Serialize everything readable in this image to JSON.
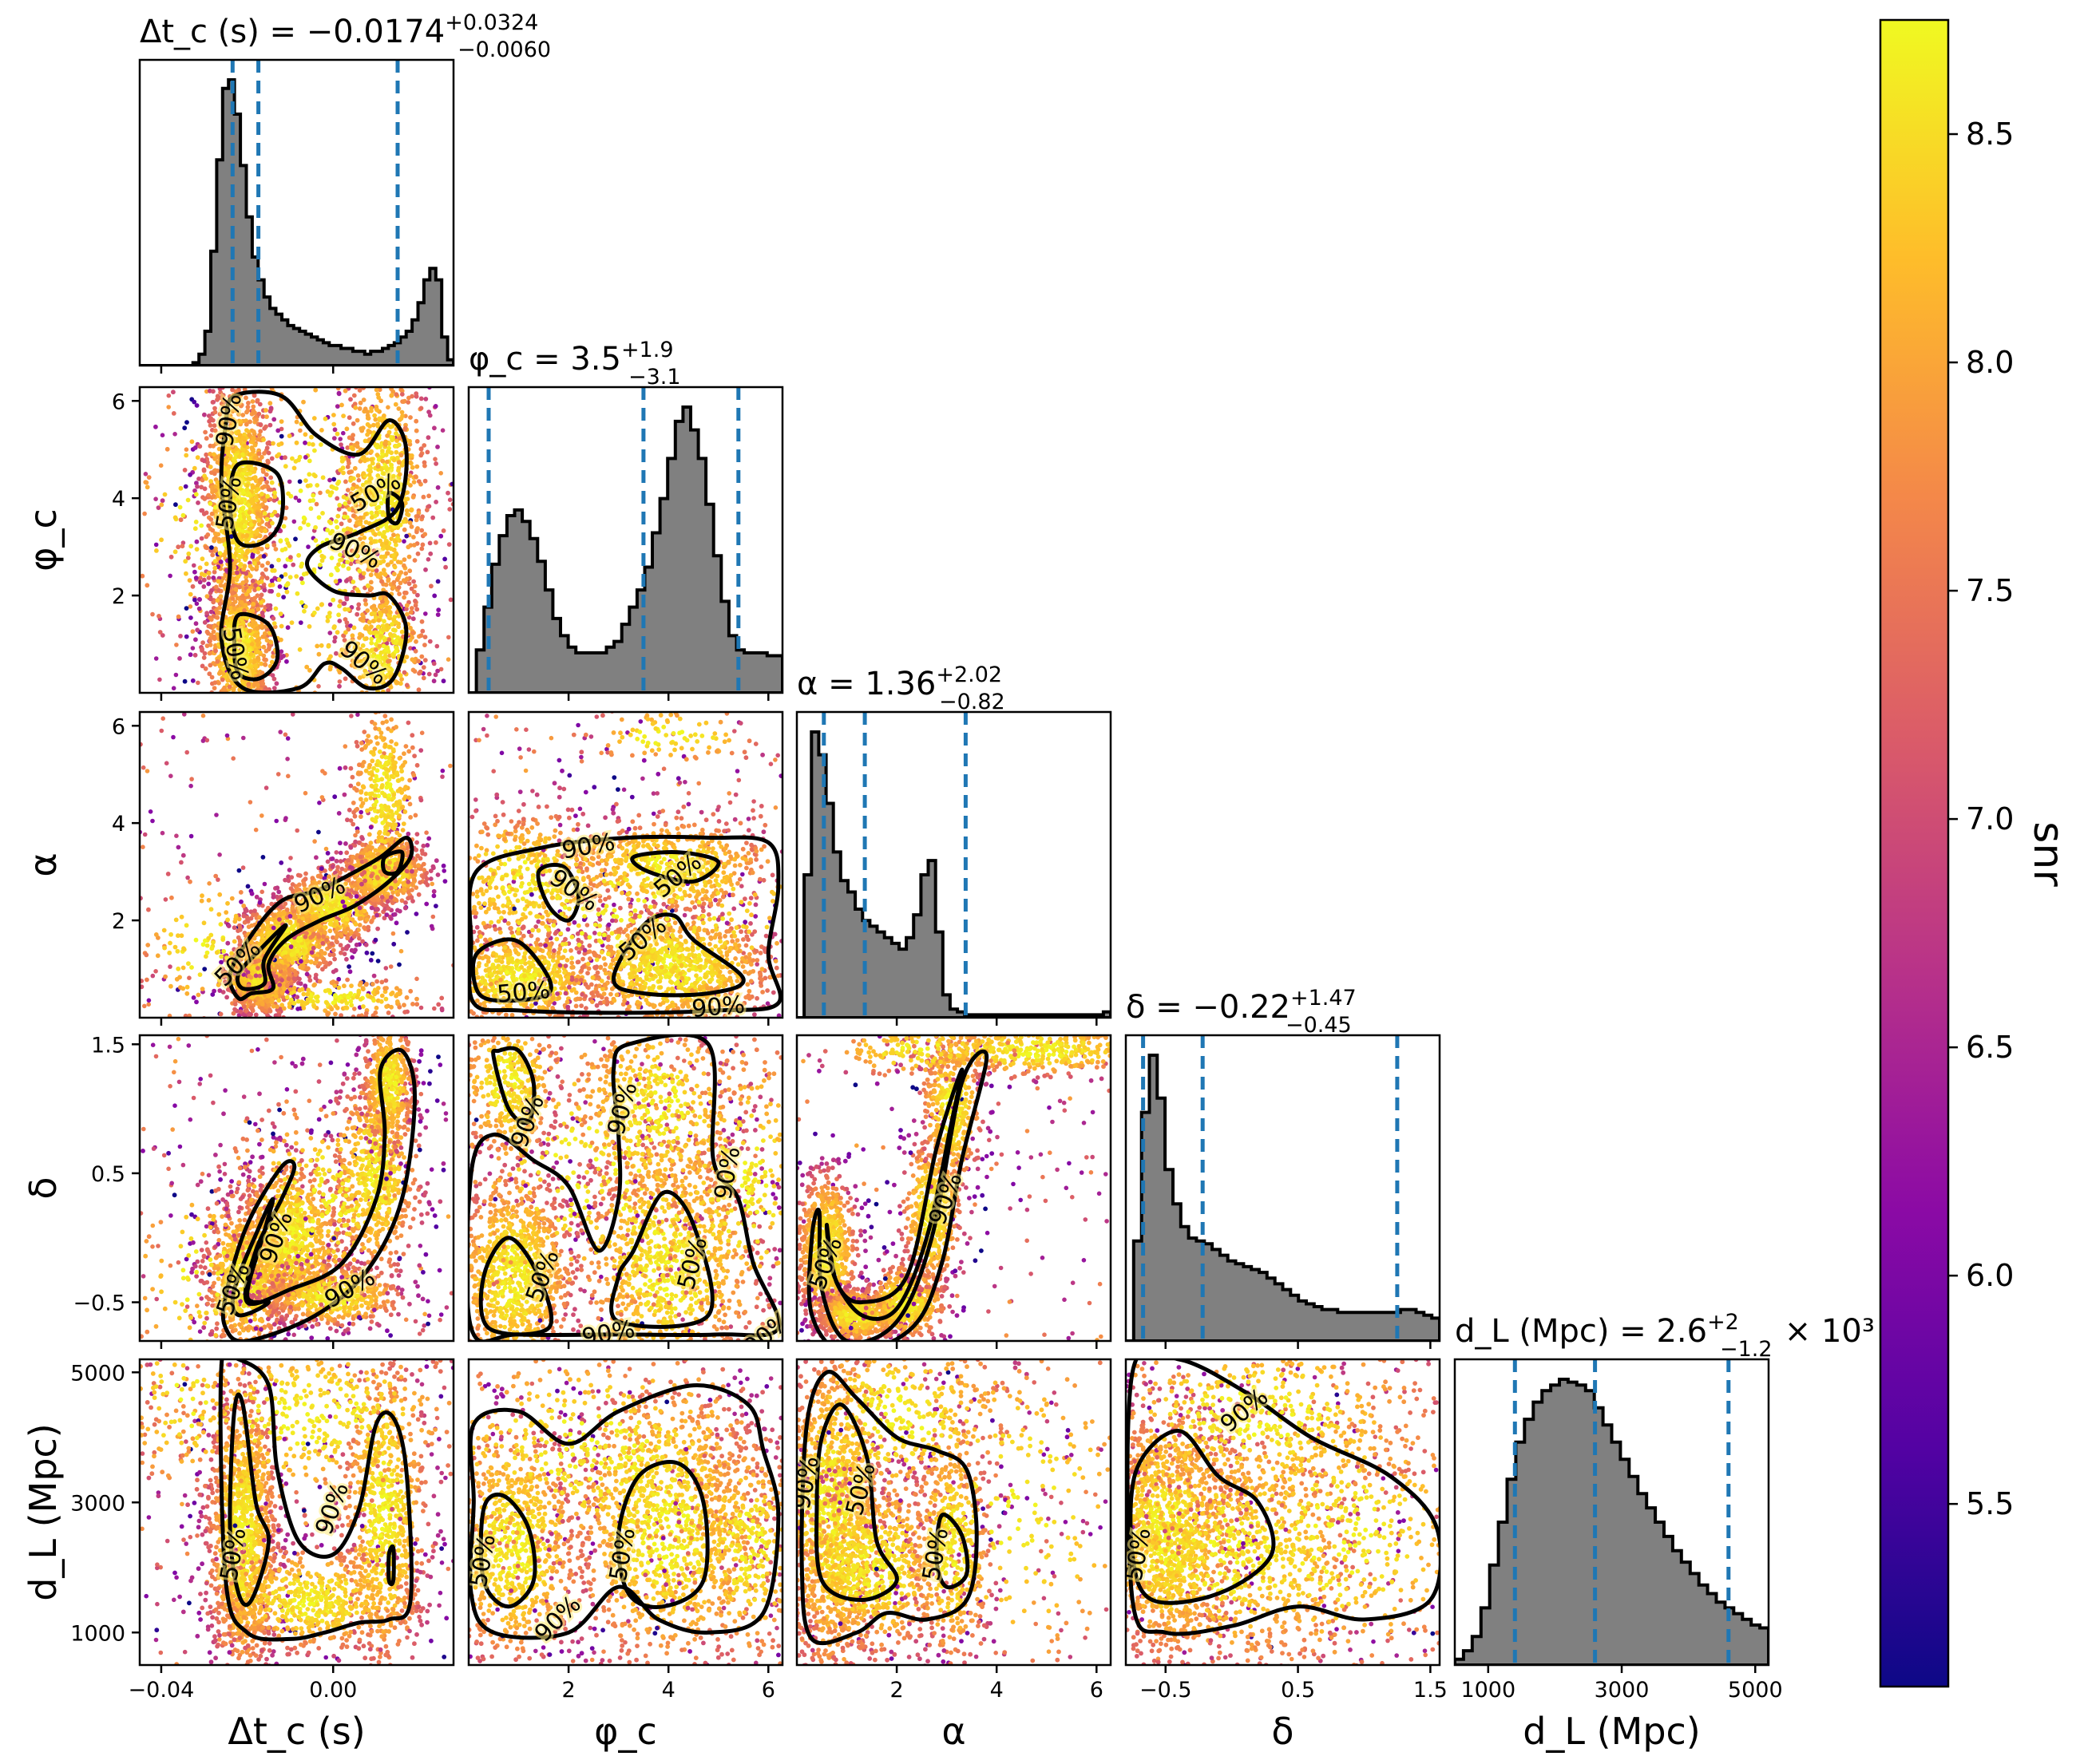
{
  "chart_data": {
    "type": "scatter",
    "subtype": "corner plot (posterior samples coloured by snr, 1-D histograms on diagonal, 50% / 90% credible contours)",
    "parameters": [
      {
        "key": "dtc",
        "label": "Δt_c (s)",
        "range": [
          -0.045,
          0.028
        ],
        "ticks": [
          {
            "v": -0.04,
            "t": "−0.04"
          },
          {
            "v": 0.0,
            "t": "0.00"
          }
        ],
        "title": {
          "prefix": "Δt_c (s) = −0.0174",
          "up": "+0.0324",
          "down": "−0.0060",
          "suffix": ""
        },
        "median": -0.0174,
        "q": [
          -0.0234,
          -0.0174,
          0.015
        ]
      },
      {
        "key": "phic",
        "label": "φ_c",
        "range": [
          0,
          6.283
        ],
        "ticks": [
          {
            "v": 2,
            "t": "2"
          },
          {
            "v": 4,
            "t": "4"
          },
          {
            "v": 6,
            "t": "6"
          }
        ],
        "title": {
          "prefix": "φ_c = 3.5",
          "up": "+1.9",
          "down": "−3.1",
          "suffix": ""
        },
        "median": 3.5,
        "q": [
          0.4,
          3.5,
          5.4
        ]
      },
      {
        "key": "alpha",
        "label": "α",
        "range": [
          0,
          6.283
        ],
        "ticks": [
          {
            "v": 2,
            "t": "2"
          },
          {
            "v": 4,
            "t": "4"
          },
          {
            "v": 6,
            "t": "6"
          }
        ],
        "title": {
          "prefix": "α = 1.36",
          "up": "+2.02",
          "down": "−0.82",
          "suffix": ""
        },
        "median": 1.36,
        "q": [
          0.54,
          1.36,
          3.38
        ]
      },
      {
        "key": "delta",
        "label": "δ",
        "range": [
          -0.8,
          1.57
        ],
        "ticks": [
          {
            "v": -0.5,
            "t": "−0.5"
          },
          {
            "v": 0.5,
            "t": "0.5"
          },
          {
            "v": 1.5,
            "t": "1.5"
          }
        ],
        "title": {
          "prefix": "δ = −0.22",
          "up": "+1.47",
          "down": "−0.45",
          "suffix": ""
        },
        "median": -0.22,
        "q": [
          -0.67,
          -0.22,
          1.25
        ]
      },
      {
        "key": "dl",
        "label": "d_L (Mpc)",
        "range": [
          500,
          5200
        ],
        "ticks": [
          {
            "v": 1000,
            "t": "1000"
          },
          {
            "v": 3000,
            "t": "3000"
          },
          {
            "v": 5000,
            "t": "5000"
          }
        ],
        "title": {
          "prefix": "d_L (Mpc) = 2.6",
          "up": "+2",
          "down": "−1.2",
          "suffix": " × 10³"
        },
        "median": 2600,
        "q": [
          1400,
          2600,
          4600
        ]
      }
    ],
    "histograms": {
      "dtc": [
        0,
        0,
        0,
        0,
        0,
        0,
        0,
        0,
        0,
        0.01,
        0.04,
        0.12,
        0.4,
        0.72,
        0.97,
        1.0,
        0.88,
        0.7,
        0.52,
        0.38,
        0.3,
        0.24,
        0.2,
        0.18,
        0.16,
        0.14,
        0.13,
        0.12,
        0.11,
        0.1,
        0.09,
        0.08,
        0.07,
        0.07,
        0.06,
        0.06,
        0.05,
        0.05,
        0.04,
        0.05,
        0.05,
        0.06,
        0.07,
        0.08,
        0.1,
        0.12,
        0.16,
        0.22,
        0.3,
        0.34,
        0.3,
        0.1,
        0.02
      ],
      "phic": [
        0.0,
        0.15,
        0.3,
        0.45,
        0.55,
        0.62,
        0.64,
        0.6,
        0.54,
        0.46,
        0.36,
        0.26,
        0.2,
        0.16,
        0.14,
        0.14,
        0.14,
        0.14,
        0.16,
        0.18,
        0.24,
        0.3,
        0.36,
        0.44,
        0.56,
        0.68,
        0.82,
        0.95,
        1.0,
        0.92,
        0.82,
        0.66,
        0.48,
        0.32,
        0.2,
        0.15,
        0.14,
        0.14,
        0.14,
        0.13,
        0.13
      ],
      "alpha": [
        0.0,
        0.5,
        1.0,
        0.92,
        0.75,
        0.58,
        0.48,
        0.44,
        0.38,
        0.34,
        0.32,
        0.3,
        0.28,
        0.26,
        0.24,
        0.28,
        0.36,
        0.5,
        0.55,
        0.3,
        0.08,
        0.03,
        0.02,
        0.01,
        0.01,
        0.01,
        0.01,
        0.01,
        0.01,
        0.01,
        0.01,
        0.01,
        0.01,
        0.01,
        0.01,
        0.01,
        0.01,
        0.01,
        0.01,
        0.01,
        0.01,
        0.01,
        0.02
      ],
      "delta": [
        0.0,
        0.35,
        0.8,
        1.0,
        0.85,
        0.6,
        0.48,
        0.4,
        0.36,
        0.35,
        0.34,
        0.32,
        0.3,
        0.28,
        0.27,
        0.26,
        0.25,
        0.24,
        0.22,
        0.2,
        0.18,
        0.16,
        0.14,
        0.13,
        0.12,
        0.11,
        0.11,
        0.1,
        0.1,
        0.1,
        0.1,
        0.1,
        0.1,
        0.1,
        0.1,
        0.11,
        0.11,
        0.1,
        0.09,
        0.08
      ],
      "dl": [
        0.02,
        0.05,
        0.1,
        0.2,
        0.35,
        0.5,
        0.65,
        0.78,
        0.86,
        0.92,
        0.96,
        0.98,
        1.0,
        0.99,
        0.98,
        0.96,
        0.9,
        0.84,
        0.78,
        0.72,
        0.66,
        0.6,
        0.55,
        0.5,
        0.45,
        0.4,
        0.36,
        0.32,
        0.28,
        0.25,
        0.22,
        0.2,
        0.18,
        0.16,
        0.14,
        0.13
      ]
    },
    "contour_levels": [
      "50%",
      "90%"
    ],
    "colorbar": {
      "label": "snr",
      "range": [
        5.1,
        8.75
      ],
      "ticks": [
        {
          "v": 5.5,
          "t": "5.5"
        },
        {
          "v": 6.0,
          "t": "6.0"
        },
        {
          "v": 6.5,
          "t": "6.5"
        },
        {
          "v": 7.0,
          "t": "7.0"
        },
        {
          "v": 7.5,
          "t": "7.5"
        },
        {
          "v": 8.0,
          "t": "8.0"
        },
        {
          "v": 8.5,
          "t": "8.5"
        }
      ],
      "colormap": "plasma",
      "colormap_stops": [
        "#0d0887",
        "#5302a3",
        "#8b0aa5",
        "#b83289",
        "#db5c68",
        "#f48849",
        "#febd2a",
        "#f0f921"
      ]
    },
    "colors": {
      "histogram_fill": "#808080",
      "histogram_edge": "#000000",
      "quantile_line": "#1f77b4",
      "contour": "#000000"
    }
  }
}
